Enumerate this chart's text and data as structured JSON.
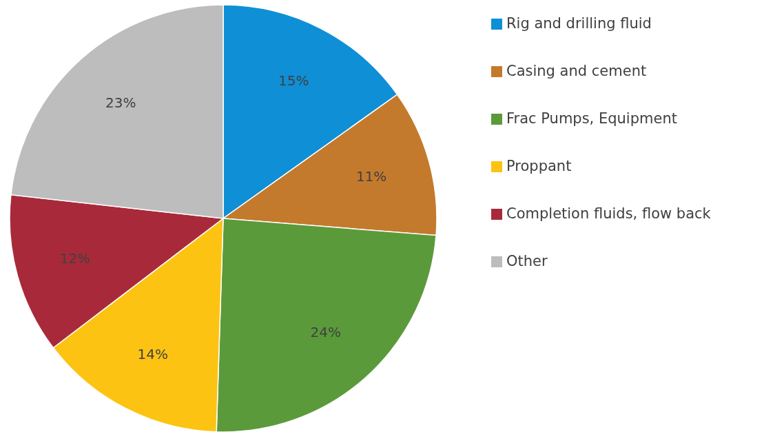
{
  "chart_data": {
    "type": "pie",
    "categories": [
      "Rig and drilling fluid",
      "Casing and cement",
      "Frac Pumps, Equipment",
      "Proppant",
      "Completion fluids, flow back",
      "Other"
    ],
    "values": [
      15,
      11,
      24,
      14,
      12,
      23
    ],
    "colors": [
      "#0f8fd6",
      "#c47a2c",
      "#5b9a3a",
      "#fdc313",
      "#a82a3a",
      "#bdbdbd"
    ],
    "value_labels": [
      "15%",
      "11%",
      "24%",
      "14%",
      "12%",
      "23%"
    ],
    "legend": "right"
  }
}
